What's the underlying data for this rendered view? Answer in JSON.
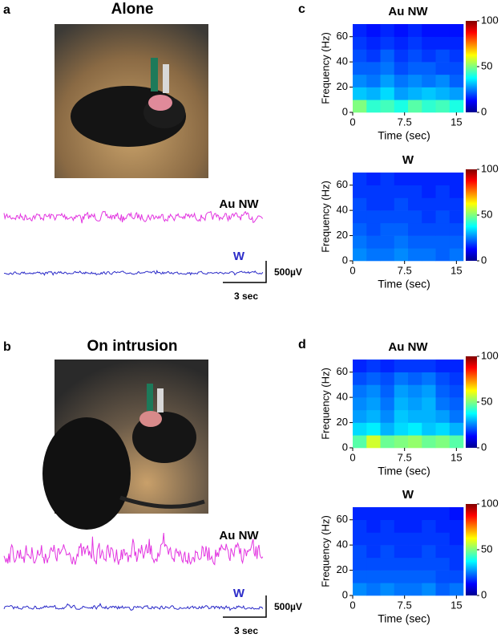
{
  "panels": [
    {
      "label": "a",
      "title": "Alone",
      "traces": [
        {
          "label": "Au NW",
          "color": "#e234e0"
        },
        {
          "label": "W",
          "color": "#2b2bc8"
        }
      ],
      "scale_bar": {
        "y_label": "500µV",
        "x_label": "3 sec"
      }
    },
    {
      "label": "b",
      "title": "On intrusion",
      "traces": [
        {
          "label": "Au NW",
          "color": "#e234e0"
        },
        {
          "label": "W",
          "color": "#2b2bc8"
        }
      ],
      "scale_bar": {
        "y_label": "500µV",
        "x_label": "3 sec"
      }
    }
  ],
  "chart_data": [
    {
      "type": "heatmap",
      "panel_label": "c",
      "title": "Au NW",
      "xlabel": "Time (sec)",
      "ylabel": "Frequency (Hz)",
      "xlim": [
        0,
        16
      ],
      "xticks": [
        0,
        7.5,
        15
      ],
      "ylim": [
        0,
        70
      ],
      "yticks": [
        0,
        20,
        40,
        60
      ],
      "clim": [
        0,
        100
      ],
      "cticks": [
        0,
        50,
        100
      ],
      "xbins": [
        0,
        2,
        4,
        6,
        8,
        10,
        12,
        14,
        16
      ],
      "ybins": [
        0,
        10,
        20,
        30,
        40,
        50,
        60,
        70
      ],
      "z": [
        [
          50,
          42,
          44,
          40,
          46,
          42,
          44,
          40
        ],
        [
          32,
          30,
          34,
          28,
          30,
          32,
          30,
          28
        ],
        [
          26,
          24,
          28,
          24,
          26,
          24,
          26,
          22
        ],
        [
          22,
          22,
          24,
          20,
          22,
          22,
          20,
          20
        ],
        [
          20,
          18,
          22,
          18,
          20,
          18,
          20,
          18
        ],
        [
          18,
          16,
          18,
          16,
          18,
          16,
          16,
          16
        ],
        [
          16,
          14,
          16,
          14,
          16,
          14,
          14,
          14
        ]
      ]
    },
    {
      "type": "heatmap",
      "title": "W",
      "xlabel": "Time (sec)",
      "ylabel": "Frequency (Hz)",
      "xlim": [
        0,
        16
      ],
      "xticks": [
        0,
        7.5,
        15
      ],
      "ylim": [
        0,
        70
      ],
      "yticks": [
        0,
        20,
        40,
        60
      ],
      "clim": [
        0,
        100
      ],
      "cticks": [
        0,
        50,
        100
      ],
      "xbins": [
        0,
        2,
        4,
        6,
        8,
        10,
        12,
        14,
        16
      ],
      "ybins": [
        0,
        10,
        20,
        30,
        40,
        50,
        60,
        70
      ],
      "z": [
        [
          26,
          24,
          24,
          26,
          24,
          24,
          22,
          24
        ],
        [
          24,
          22,
          22,
          24,
          22,
          22,
          22,
          22
        ],
        [
          22,
          20,
          22,
          22,
          20,
          20,
          20,
          20
        ],
        [
          20,
          20,
          20,
          20,
          20,
          18,
          20,
          18
        ],
        [
          20,
          18,
          18,
          20,
          18,
          18,
          18,
          18
        ],
        [
          18,
          18,
          18,
          18,
          18,
          16,
          18,
          16
        ],
        [
          18,
          16,
          18,
          16,
          16,
          16,
          16,
          16
        ]
      ]
    },
    {
      "type": "heatmap",
      "panel_label": "d",
      "title": "Au NW",
      "xlabel": "Time (sec)",
      "ylabel": "Frequency (Hz)",
      "xlim": [
        0,
        16
      ],
      "xticks": [
        0,
        7.5,
        15
      ],
      "ylim": [
        0,
        70
      ],
      "yticks": [
        0,
        20,
        40,
        60
      ],
      "clim": [
        0,
        100
      ],
      "cticks": [
        0,
        50,
        100
      ],
      "xbins": [
        0,
        2,
        4,
        6,
        8,
        10,
        12,
        14,
        16
      ],
      "ybins": [
        0,
        10,
        20,
        30,
        40,
        50,
        60,
        70
      ],
      "z": [
        [
          46,
          58,
          48,
          50,
          52,
          48,
          50,
          46
        ],
        [
          34,
          36,
          30,
          34,
          36,
          32,
          34,
          30
        ],
        [
          28,
          30,
          26,
          32,
          30,
          30,
          28,
          24
        ],
        [
          26,
          28,
          24,
          30,
          28,
          30,
          24,
          22
        ],
        [
          24,
          26,
          22,
          28,
          26,
          28,
          22,
          20
        ],
        [
          20,
          22,
          20,
          24,
          22,
          24,
          20,
          18
        ],
        [
          16,
          18,
          16,
          18,
          18,
          18,
          16,
          16
        ]
      ]
    },
    {
      "type": "heatmap",
      "title": "W",
      "xlabel": "Time (sec)",
      "ylabel": "Frequency (Hz)",
      "xlim": [
        0,
        16
      ],
      "xticks": [
        0,
        7.5,
        15
      ],
      "ylim": [
        0,
        70
      ],
      "yticks": [
        0,
        20,
        40,
        60
      ],
      "clim": [
        0,
        100
      ],
      "cticks": [
        0,
        50,
        100
      ],
      "xbins": [
        0,
        2,
        4,
        6,
        8,
        10,
        12,
        14,
        16
      ],
      "ybins": [
        0,
        10,
        20,
        30,
        40,
        50,
        60,
        70
      ],
      "z": [
        [
          26,
          24,
          26,
          24,
          24,
          26,
          22,
          24
        ],
        [
          22,
          22,
          22,
          22,
          22,
          22,
          20,
          20
        ],
        [
          20,
          20,
          20,
          20,
          20,
          20,
          20,
          18
        ],
        [
          20,
          18,
          20,
          18,
          18,
          20,
          18,
          18
        ],
        [
          18,
          18,
          18,
          18,
          18,
          18,
          18,
          16
        ],
        [
          18,
          16,
          18,
          16,
          16,
          18,
          16,
          16
        ],
        [
          16,
          16,
          16,
          16,
          16,
          16,
          16,
          14
        ]
      ]
    }
  ]
}
